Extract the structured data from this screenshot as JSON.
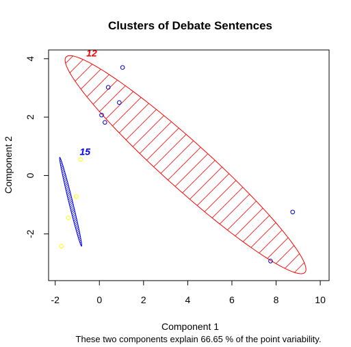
{
  "chart_data": {
    "type": "scatter",
    "title": "Clusters of Debate Sentences",
    "xlabel": "Component 1",
    "ylabel": "Component 2",
    "subtitle": "These two components explain 66.65 % of the point variability.",
    "xlim": [
      -2.3,
      10.4
    ],
    "ylim": [
      -3.6,
      4.3
    ],
    "x_ticks": [
      "-2",
      "0",
      "2",
      "4",
      "6",
      "8",
      "10"
    ],
    "y_ticks": [
      "-2",
      "0",
      "2",
      "4"
    ],
    "x_tick_values": [
      -2,
      0,
      2,
      4,
      6,
      8,
      10
    ],
    "y_tick_values": [
      -2,
      0,
      2,
      4
    ],
    "grid": false,
    "legend": "none",
    "clusters": [
      {
        "label": "12",
        "label_color": "#ff0000",
        "label_pos": [
          -0.35,
          4.08
        ],
        "outline_color": "#ff0000",
        "hatch_color": "#ff0000",
        "ellipse": {
          "cx": 3.9,
          "cy": 0.37,
          "rx": 6.55,
          "ry": 0.88,
          "angle_deg": -34.0
        },
        "points": [
          [
            1.05,
            3.7
          ],
          [
            0.4,
            3.02
          ],
          [
            0.9,
            2.5
          ],
          [
            0.1,
            2.07
          ],
          [
            0.25,
            1.82
          ],
          [
            8.75,
            -1.25
          ],
          [
            7.75,
            -2.93
          ]
        ],
        "point_color": "#0000cd"
      },
      {
        "label": "15",
        "label_color": "#0000ff",
        "label_pos": [
          -0.65,
          0.7
        ],
        "outline_color": "#0000ff",
        "hatch_color": "#0000ff",
        "ellipse": {
          "cx": -1.3,
          "cy": -0.9,
          "rx": 1.6,
          "ry": 0.085,
          "angle_deg": -72.0
        },
        "points": [
          [
            -0.85,
            0.55
          ],
          [
            -1.05,
            -0.72
          ],
          [
            -1.4,
            -1.45
          ],
          [
            -1.72,
            -2.42
          ]
        ],
        "point_color": "#ffff00"
      }
    ]
  }
}
